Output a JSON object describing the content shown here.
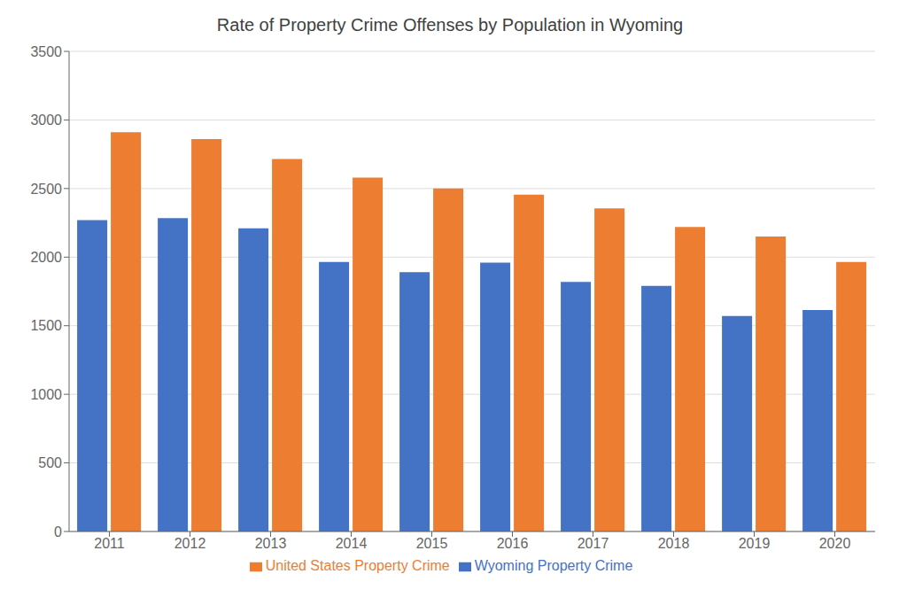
{
  "chart_data": {
    "type": "bar",
    "title": "Rate of Property Crime Offenses by Population in Wyoming",
    "categories": [
      "2011",
      "2012",
      "2013",
      "2014",
      "2015",
      "2016",
      "2017",
      "2018",
      "2019",
      "2020"
    ],
    "series": [
      {
        "name": "Wyoming Property Crime",
        "color": "#4472C4",
        "values": [
          2270,
          2285,
          2210,
          1965,
          1890,
          1960,
          1820,
          1790,
          1570,
          1615
        ]
      },
      {
        "name": "United States Property Crime",
        "color": "#ED7D31",
        "values": [
          2910,
          2860,
          2715,
          2580,
          2500,
          2455,
          2355,
          2220,
          2150,
          1965
        ]
      }
    ],
    "ylim": [
      0,
      3500
    ],
    "yticks": [
      0,
      500,
      1000,
      1500,
      2000,
      2500,
      3000,
      3500
    ],
    "grid": true,
    "legend": "bottom"
  }
}
